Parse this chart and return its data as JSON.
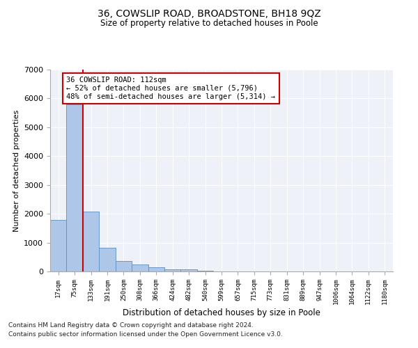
{
  "title": "36, COWSLIP ROAD, BROADSTONE, BH18 9QZ",
  "subtitle": "Size of property relative to detached houses in Poole",
  "xlabel": "Distribution of detached houses by size in Poole",
  "ylabel": "Number of detached properties",
  "bar_labels": [
    "17sqm",
    "75sqm",
    "133sqm",
    "191sqm",
    "250sqm",
    "308sqm",
    "366sqm",
    "424sqm",
    "482sqm",
    "540sqm",
    "599sqm",
    "657sqm",
    "715sqm",
    "773sqm",
    "831sqm",
    "889sqm",
    "947sqm",
    "1006sqm",
    "1064sqm",
    "1122sqm",
    "1180sqm"
  ],
  "bar_values": [
    1780,
    5790,
    2080,
    810,
    370,
    230,
    135,
    80,
    65,
    30,
    0,
    0,
    0,
    0,
    0,
    0,
    0,
    0,
    0,
    0,
    0
  ],
  "bar_color": "#aec6e8",
  "bar_edge_color": "#5a8fc2",
  "background_color": "#eef2f8",
  "grid_color": "#ffffff",
  "vline_color": "#cc0000",
  "annotation_text": "36 COWSLIP ROAD: 112sqm\n← 52% of detached houses are smaller (5,796)\n48% of semi-detached houses are larger (5,314) →",
  "annotation_box_color": "#ffffff",
  "annotation_box_edge": "#cc0000",
  "ylim": [
    0,
    7000
  ],
  "yticks": [
    0,
    1000,
    2000,
    3000,
    4000,
    5000,
    6000,
    7000
  ],
  "footnote1": "Contains HM Land Registry data © Crown copyright and database right 2024.",
  "footnote2": "Contains public sector information licensed under the Open Government Licence v3.0."
}
